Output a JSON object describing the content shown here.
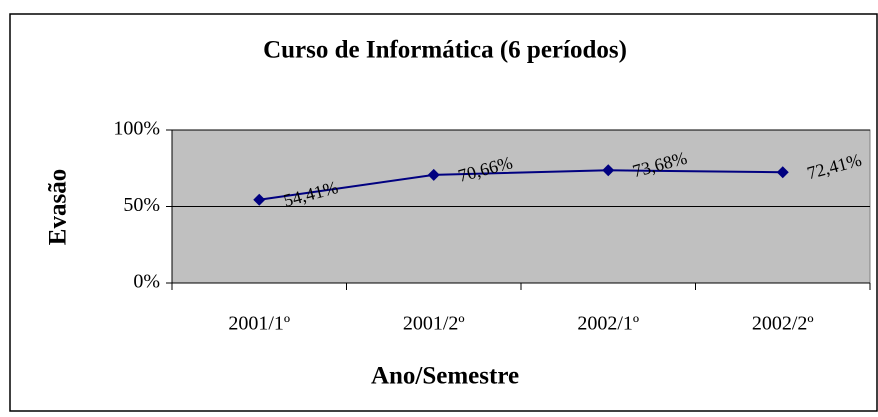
{
  "chart_data": {
    "type": "line",
    "title": "Curso de Informática (6 períodos)",
    "ylabel": "Evasão",
    "xlabel": "Ano/Semestre",
    "categories": [
      "2001/1º",
      "2001/2º",
      "2002/1º",
      "2002/2º"
    ],
    "series": [
      {
        "name": "Evasão",
        "color": "#000080",
        "values": [
          54.41,
          70.66,
          73.68,
          72.41
        ],
        "value_labels": [
          "54,41%",
          "70,66%",
          "73,68%",
          "72,41%"
        ]
      }
    ],
    "ylim": [
      0,
      100
    ],
    "yticks": [
      {
        "value": 0,
        "label": "0%"
      },
      {
        "value": 50,
        "label": "50%"
      },
      {
        "value": 100,
        "label": "100%"
      }
    ],
    "grid": true
  }
}
